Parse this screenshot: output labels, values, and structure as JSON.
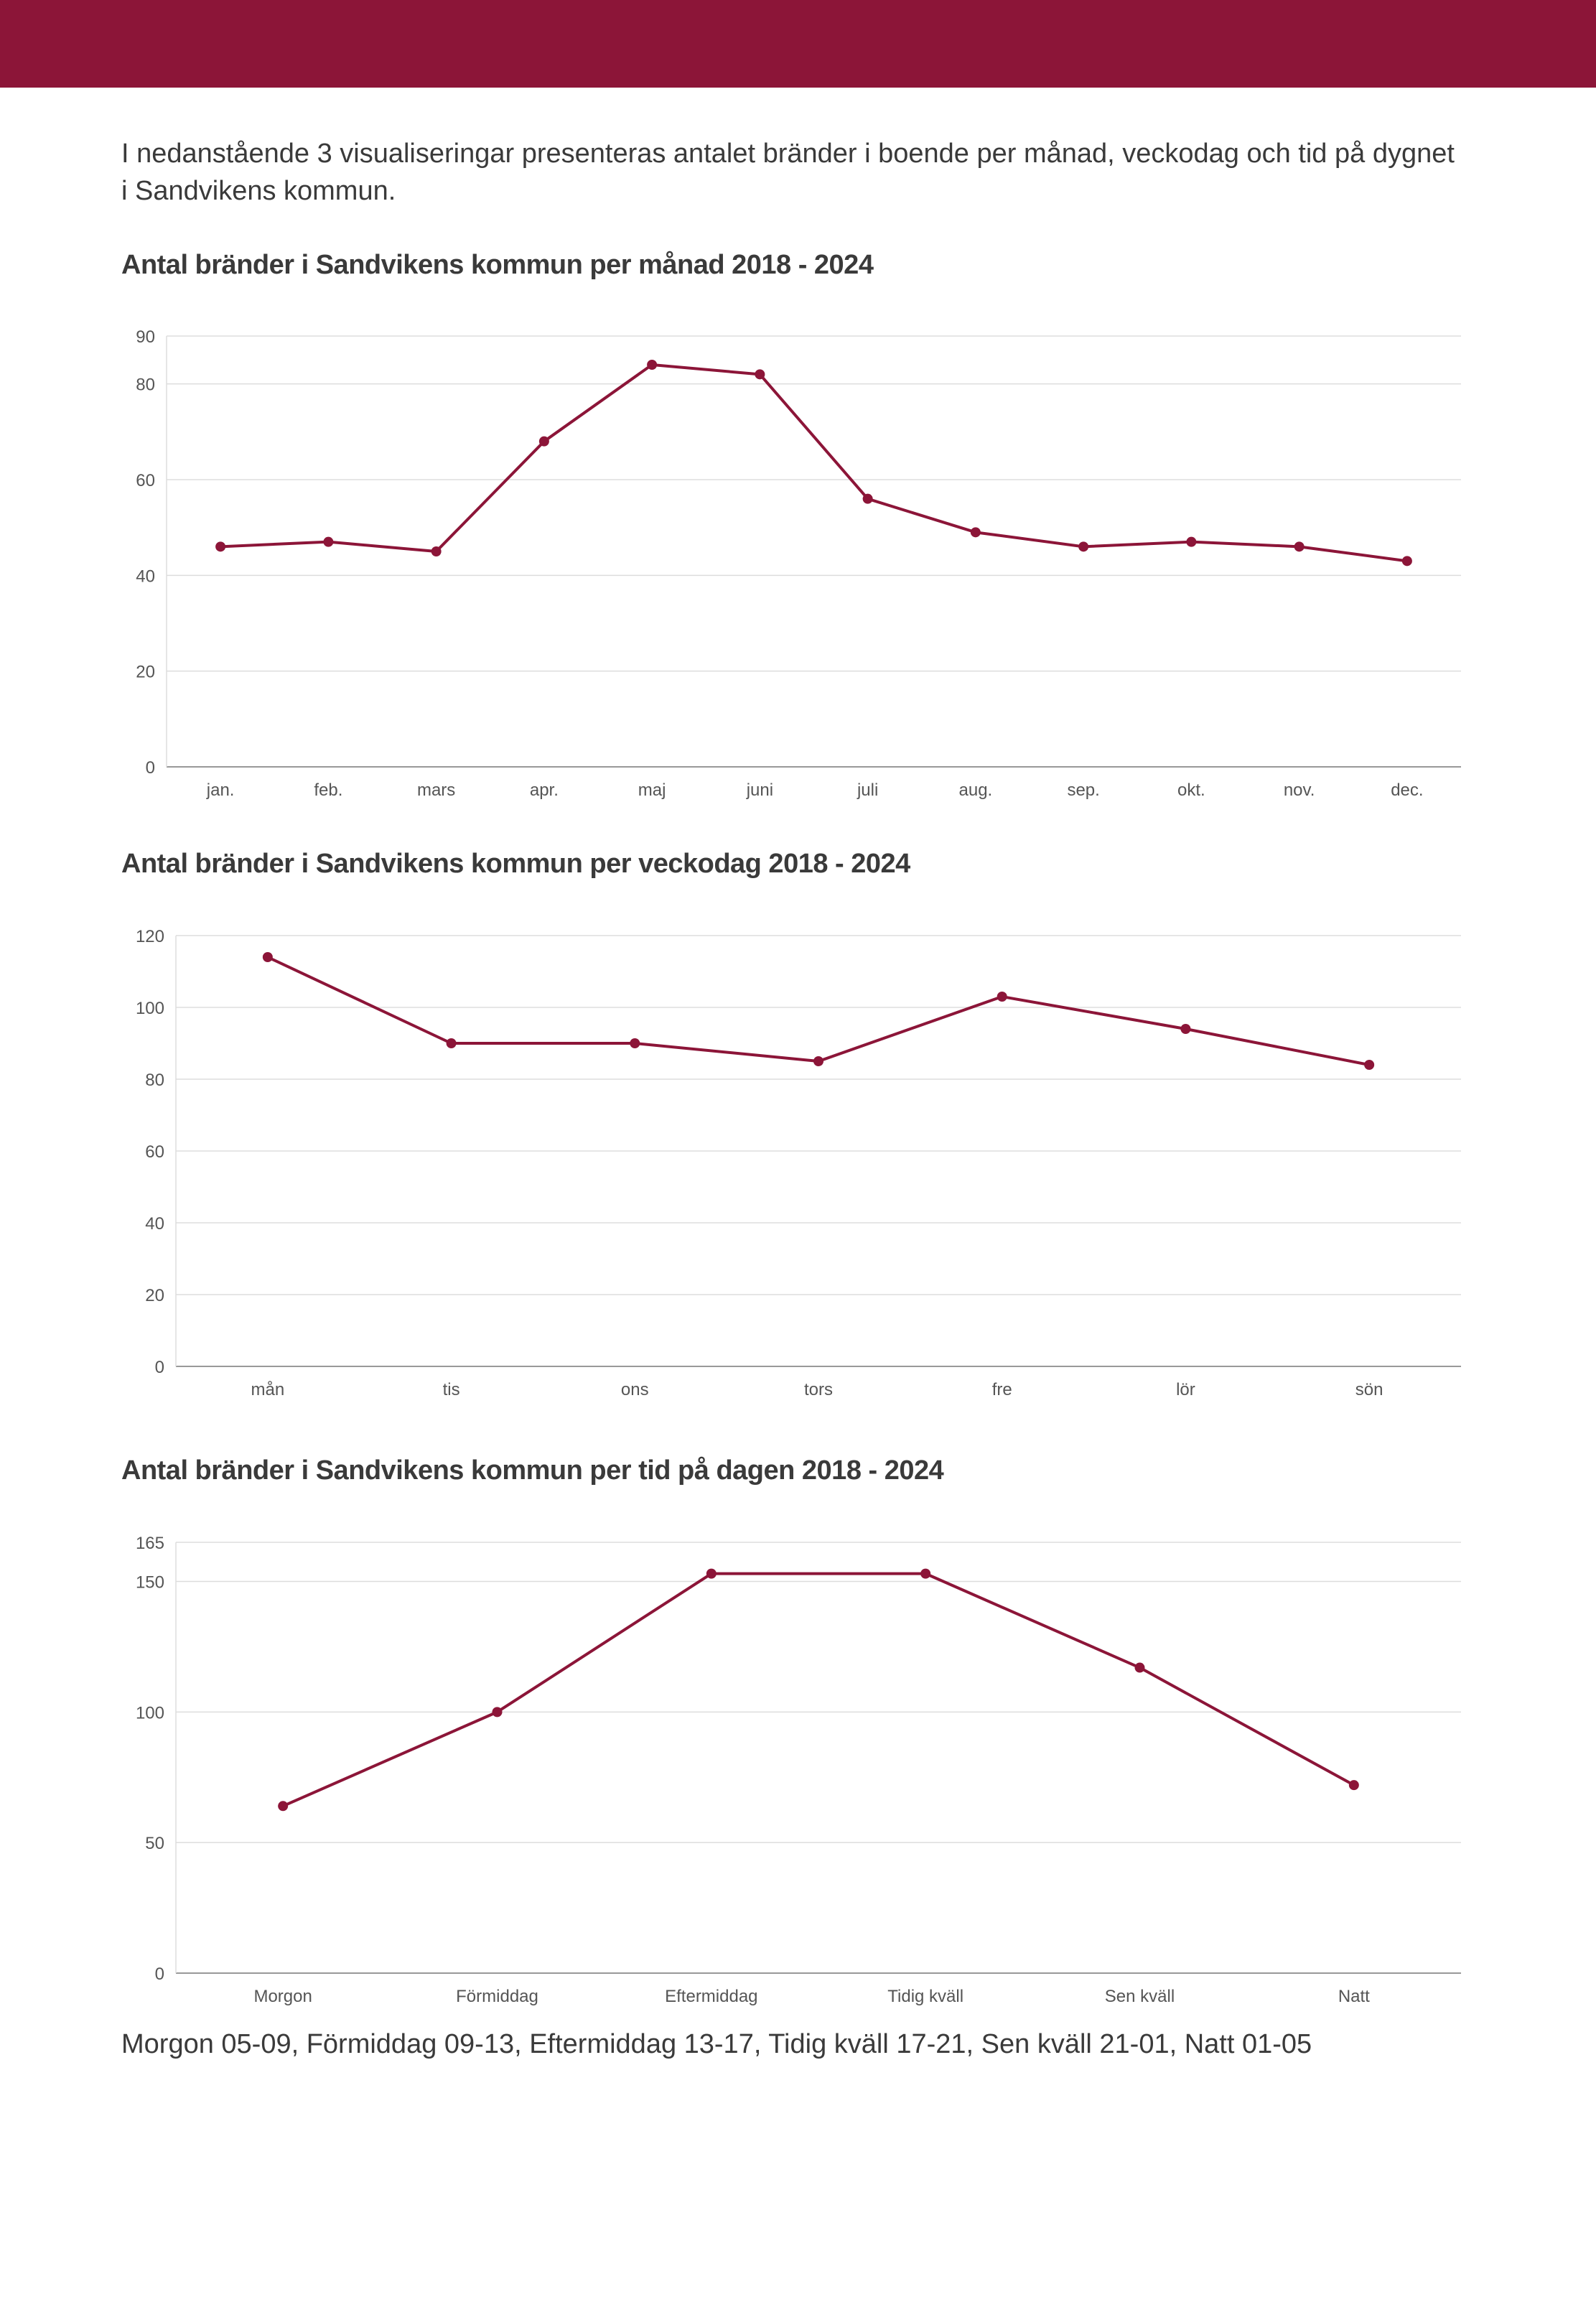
{
  "intro": "I nedanstående 3 visualiseringar presenteras antalet bränder i boende per månad, veckodag och tid på dygnet i Sandvikens kommun.",
  "colors": {
    "brand": "#8c1538",
    "grid": "#dddddd",
    "axis": "#999999",
    "line": "#8c1538"
  },
  "chart_data": [
    {
      "type": "line",
      "title": "Antal bränder i Sandvikens kommun per månad 2018 - 2024",
      "categories": [
        "jan.",
        "feb.",
        "mars",
        "apr.",
        "maj",
        "juni",
        "juli",
        "aug.",
        "sep.",
        "okt.",
        "nov.",
        "dec."
      ],
      "series": [
        {
          "name": "Antal bränder",
          "values": [
            46,
            47,
            45,
            68,
            84,
            82,
            56,
            49,
            46,
            47,
            46,
            43
          ]
        }
      ],
      "yticks": [
        0,
        20,
        40,
        60,
        80,
        90
      ],
      "ylim": [
        0,
        90
      ],
      "xlabel": "",
      "ylabel": "",
      "grid": true,
      "legend": "none"
    },
    {
      "type": "line",
      "title": "Antal bränder i Sandvikens kommun per veckodag 2018 - 2024",
      "categories": [
        "mån",
        "tis",
        "ons",
        "tors",
        "fre",
        "lör",
        "sön"
      ],
      "series": [
        {
          "name": "Antal bränder",
          "values": [
            114,
            90,
            90,
            85,
            103,
            94,
            84
          ]
        }
      ],
      "yticks": [
        0,
        20,
        40,
        60,
        80,
        100,
        120
      ],
      "ylim": [
        0,
        120
      ],
      "xlabel": "",
      "ylabel": "",
      "grid": true,
      "legend": "none"
    },
    {
      "type": "line",
      "title": "Antal bränder i Sandvikens kommun per tid på dagen 2018 - 2024",
      "categories": [
        "Morgon",
        "Förmiddag",
        "Eftermiddag",
        "Tidig kväll",
        "Sen kväll",
        "Natt"
      ],
      "series": [
        {
          "name": "Antal bränder",
          "values": [
            64,
            100,
            153,
            153,
            117,
            72
          ]
        }
      ],
      "yticks": [
        0,
        50,
        100,
        150,
        165
      ],
      "ylim": [
        0,
        165
      ],
      "xlabel": "",
      "ylabel": "",
      "grid": true,
      "legend": "none"
    }
  ],
  "footnote": "Morgon 05-09, Förmiddag 09-13, Eftermiddag 13-17, Tidig kväll 17-21, Sen kväll 21-01, Natt 01-05"
}
